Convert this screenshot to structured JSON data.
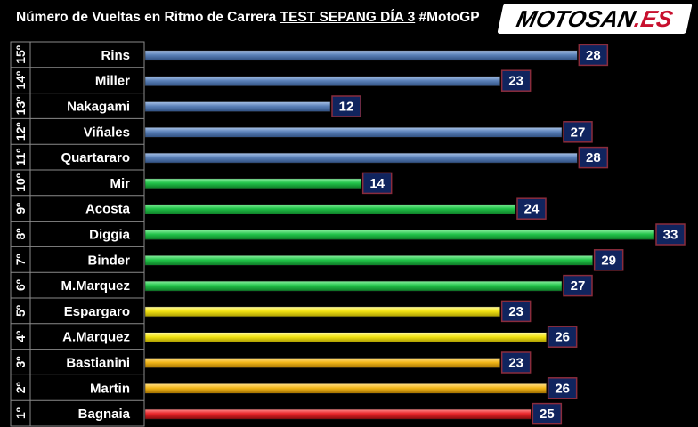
{
  "title_parts": {
    "before": "Número de Vueltas en Ritmo de Carrera ",
    "underlined": "TEST SEPANG DÍA 3",
    "after": " #MotoGP"
  },
  "logo": {
    "main": "MOTOSAN",
    "accent": ".ES"
  },
  "colors": {
    "blue": "#6f94c8",
    "green": "#2fcf55",
    "yellow": "#f3e313",
    "orange": "#f2b618",
    "red": "#e8262a",
    "label_box": "#10245e",
    "label_border": "#8a2c3c"
  },
  "chart_data": {
    "type": "bar",
    "orientation": "horizontal",
    "xlim": [
      0,
      33
    ],
    "grid": false,
    "categories": [
      "Rins",
      "Miller",
      "Nakagami",
      "Viñales",
      "Quartararo",
      "Mir",
      "Acosta",
      "Diggia",
      "Binder",
      "M.Marquez",
      "Espargaro",
      "A.Marquez",
      "Bastianini",
      "Martin",
      "Bagnaia"
    ],
    "positions": [
      "15º",
      "14º",
      "13º",
      "12º",
      "11º",
      "10º",
      "9º",
      "8º",
      "7º",
      "6º",
      "5º",
      "4º",
      "3º",
      "2º",
      "1º"
    ],
    "values": [
      28,
      23,
      12,
      27,
      28,
      14,
      24,
      33,
      29,
      27,
      23,
      26,
      23,
      26,
      25
    ],
    "bar_colors": [
      "blue",
      "blue",
      "blue",
      "blue",
      "blue",
      "green",
      "green",
      "green",
      "green",
      "green",
      "yellow",
      "yellow",
      "orange",
      "orange",
      "red"
    ]
  }
}
